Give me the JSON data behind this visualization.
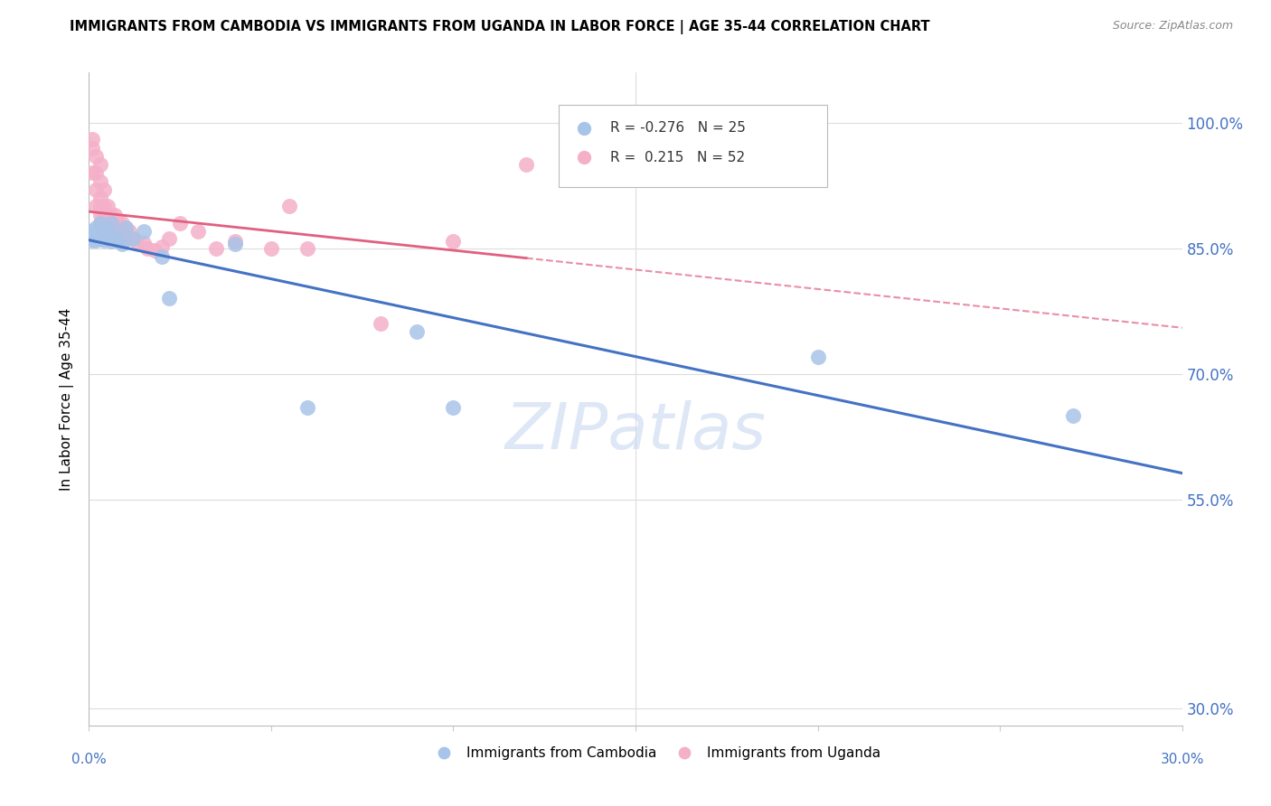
{
  "title": "IMMIGRANTS FROM CAMBODIA VS IMMIGRANTS FROM UGANDA IN LABOR FORCE | AGE 35-44 CORRELATION CHART",
  "source": "Source: ZipAtlas.com",
  "ylabel": "In Labor Force | Age 35-44",
  "y_ticks": [
    0.3,
    0.55,
    0.7,
    0.85,
    1.0
  ],
  "y_tick_labels": [
    "30.0%",
    "55.0%",
    "70.0%",
    "85.0%",
    "100.0%"
  ],
  "xlim": [
    0.0,
    0.3
  ],
  "ylim": [
    0.28,
    1.06
  ],
  "cambodia_R": -0.276,
  "cambodia_N": 25,
  "uganda_R": 0.215,
  "uganda_N": 52,
  "cambodia_color": "#a8c4e8",
  "uganda_color": "#f4b0c8",
  "cambodia_line_color": "#4472c4",
  "uganda_line_color": "#e06080",
  "watermark_color": "#c8d8f0",
  "scatter_cambodia_x": [
    0.001,
    0.001,
    0.002,
    0.002,
    0.003,
    0.003,
    0.004,
    0.004,
    0.005,
    0.006,
    0.006,
    0.007,
    0.008,
    0.009,
    0.01,
    0.012,
    0.015,
    0.02,
    0.022,
    0.04,
    0.06,
    0.09,
    0.1,
    0.2,
    0.27
  ],
  "scatter_cambodia_y": [
    0.87,
    0.86,
    0.875,
    0.86,
    0.88,
    0.862,
    0.875,
    0.86,
    0.87,
    0.88,
    0.858,
    0.865,
    0.86,
    0.855,
    0.875,
    0.862,
    0.87,
    0.84,
    0.79,
    0.855,
    0.66,
    0.75,
    0.66,
    0.72,
    0.65
  ],
  "scatter_uganda_x": [
    0.001,
    0.001,
    0.001,
    0.002,
    0.002,
    0.002,
    0.002,
    0.003,
    0.003,
    0.003,
    0.003,
    0.003,
    0.003,
    0.004,
    0.004,
    0.004,
    0.004,
    0.004,
    0.005,
    0.005,
    0.005,
    0.005,
    0.006,
    0.006,
    0.006,
    0.007,
    0.007,
    0.007,
    0.008,
    0.008,
    0.009,
    0.009,
    0.01,
    0.01,
    0.011,
    0.012,
    0.013,
    0.015,
    0.016,
    0.018,
    0.02,
    0.022,
    0.025,
    0.03,
    0.035,
    0.04,
    0.05,
    0.055,
    0.06,
    0.08,
    0.1,
    0.12
  ],
  "scatter_uganda_y": [
    0.98,
    0.97,
    0.94,
    0.96,
    0.94,
    0.92,
    0.9,
    0.95,
    0.93,
    0.91,
    0.9,
    0.89,
    0.88,
    0.92,
    0.9,
    0.89,
    0.88,
    0.87,
    0.9,
    0.89,
    0.88,
    0.87,
    0.89,
    0.88,
    0.87,
    0.89,
    0.88,
    0.87,
    0.88,
    0.87,
    0.88,
    0.87,
    0.875,
    0.862,
    0.87,
    0.862,
    0.858,
    0.856,
    0.85,
    0.848,
    0.852,
    0.862,
    0.88,
    0.87,
    0.85,
    0.858,
    0.85,
    0.9,
    0.85,
    0.76,
    0.858,
    0.95
  ]
}
